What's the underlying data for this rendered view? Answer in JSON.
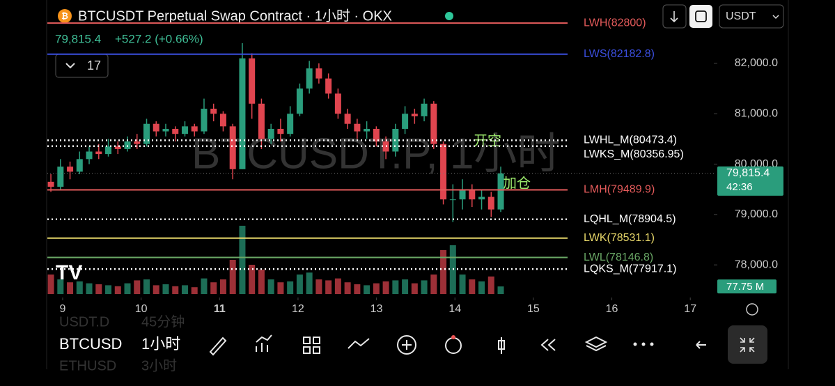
{
  "header": {
    "title": "BTCUSDT Perpetual Swap Contract · 1小时 · OKX",
    "price": "79,815.4",
    "change": "+527.2 (+0.66%)",
    "indicators": "17",
    "currency": "USDT"
  },
  "chart_data": {
    "type": "candlestick",
    "watermark": "BTCUSDT.P, 1小时",
    "x": [
      8.85,
      8.972,
      9.094,
      9.216,
      9.338,
      9.46,
      9.582,
      9.704,
      9.826,
      9.948,
      10.07,
      10.192,
      10.314,
      10.436,
      10.558,
      10.68,
      10.802,
      10.924,
      11.046,
      11.168,
      11.29,
      11.412,
      11.534,
      11.656,
      11.778,
      11.9,
      12.022,
      12.144,
      12.266,
      12.388,
      12.51,
      12.632,
      12.754,
      12.876,
      12.998,
      13.12,
      13.242,
      13.364,
      13.486,
      13.608,
      13.73,
      13.852,
      13.974,
      14.096,
      14.218,
      14.34,
      14.462,
      14.584
    ],
    "open": [
      79650,
      79550,
      79950,
      79850,
      80100,
      80250,
      80200,
      80350,
      80300,
      80450,
      80400,
      80800,
      80650,
      80700,
      80600,
      80750,
      80650,
      81100,
      81000,
      80750,
      79900,
      82100,
      81200,
      80500,
      80700,
      80600,
      81000,
      81500,
      81900,
      81700,
      81400,
      81000,
      80800,
      80650,
      80700,
      80450,
      80250,
      80700,
      81000,
      80950,
      81200,
      80400,
      79300,
      79300,
      79500,
      79300,
      79350,
      79100
    ],
    "high": [
      79800,
      80100,
      80050,
      80250,
      80350,
      80400,
      80500,
      80450,
      80550,
      80600,
      80900,
      80850,
      80800,
      80750,
      80850,
      80800,
      81300,
      81200,
      81050,
      80800,
      82400,
      82200,
      81300,
      80800,
      80900,
      81150,
      81600,
      82050,
      82000,
      81800,
      81500,
      81100,
      80900,
      80850,
      80750,
      80550,
      80800,
      81150,
      81100,
      81300,
      81250,
      80450,
      79600,
      79700,
      79600,
      79500,
      79450,
      79950
    ],
    "low": [
      79450,
      79500,
      79700,
      79800,
      80000,
      80100,
      80150,
      80200,
      80250,
      80300,
      80350,
      80550,
      80550,
      80450,
      80550,
      80550,
      80600,
      80850,
      80650,
      79700,
      79900,
      80900,
      80300,
      80400,
      80450,
      80550,
      80950,
      81400,
      81600,
      81300,
      80900,
      80700,
      80500,
      80500,
      80350,
      80100,
      80150,
      80600,
      80800,
      80850,
      80300,
      79200,
      78850,
      79100,
      79150,
      79100,
      78950,
      79050
    ],
    "close": [
      79550,
      79950,
      79850,
      80100,
      80250,
      80200,
      80350,
      80300,
      80450,
      80400,
      80800,
      80650,
      80700,
      80600,
      80750,
      80650,
      81100,
      81000,
      80750,
      79900,
      82100,
      81200,
      80500,
      80700,
      80600,
      81000,
      81500,
      81900,
      81700,
      81400,
      81000,
      80800,
      80650,
      80700,
      80450,
      80250,
      80700,
      81000,
      80950,
      81200,
      80400,
      79300,
      79300,
      79500,
      79300,
      79350,
      79100,
      79815.4
    ],
    "volume": [
      200,
      150,
      120,
      130,
      110,
      100,
      90,
      80,
      110,
      140,
      150,
      90,
      100,
      80,
      90,
      70,
      160,
      120,
      150,
      350,
      700,
      300,
      250,
      150,
      120,
      130,
      200,
      220,
      150,
      140,
      160,
      120,
      100,
      90,
      110,
      130,
      140,
      150,
      110,
      140,
      200,
      450,
      500,
      200,
      150,
      130,
      180,
      77.75
    ],
    "up_color": "#2a9d7c",
    "down_color": "#e0454f",
    "xlim": [
      8.805,
      17.3
    ],
    "xticks": [
      9,
      10,
      11,
      12,
      13,
      14,
      15,
      16,
      17
    ],
    "ylim": [
      77380,
      82843
    ],
    "yticks": [
      {
        "value": 78000,
        "label": "78,000.0"
      },
      {
        "value": 79000,
        "label": "79,000.0"
      },
      {
        "value": 80000,
        "label": "80,000.0"
      },
      {
        "value": 81000,
        "label": "81,000.0"
      },
      {
        "value": 82000,
        "label": "82,000.0"
      }
    ],
    "levels": [
      {
        "label": "LWH(82800)",
        "value": 82800,
        "color": "#e55b5b",
        "style": "solid"
      },
      {
        "label": "LWS(82182.8)",
        "value": 82182.8,
        "color": "#3b4fe0",
        "style": "solid"
      },
      {
        "label": "LWHL_M(80473.4)",
        "value": 80473.4,
        "color": "#ffffff",
        "style": "dotted"
      },
      {
        "label": "LWKS_M(80356.95)",
        "value": 80356.95,
        "color": "#ffffff",
        "style": "dotted"
      },
      {
        "label": "LMH(79489.9)",
        "value": 79489.9,
        "color": "#e55b5b",
        "style": "solid"
      },
      {
        "label": "LQHL_M(78904.5)",
        "value": 78904.5,
        "color": "#ffffff",
        "style": "dotted"
      },
      {
        "label": "LWK(78531.1)",
        "value": 78531.1,
        "color": "#e8d86a",
        "style": "solid"
      },
      {
        "label": "LWL(78146.8)",
        "value": 78146.8,
        "color": "#6aa866",
        "style": "solid"
      },
      {
        "label": "LQKS_M(77917.1)",
        "value": 77917.1,
        "color": "#ffffff",
        "style": "dotted"
      }
    ],
    "last_price": {
      "value": 79815.4,
      "label": "79,815.4"
    },
    "countdown": "42:36",
    "last_volume": {
      "value": 77.75,
      "label": "77.75 M"
    },
    "annotations": [
      "开空",
      "加仓"
    ]
  },
  "toolbar": {
    "symbol": "BTCUSD",
    "interval": "1小时",
    "ghost": [
      "USDT.D",
      "45分钟",
      "ETHUSD",
      "3小时"
    ]
  }
}
